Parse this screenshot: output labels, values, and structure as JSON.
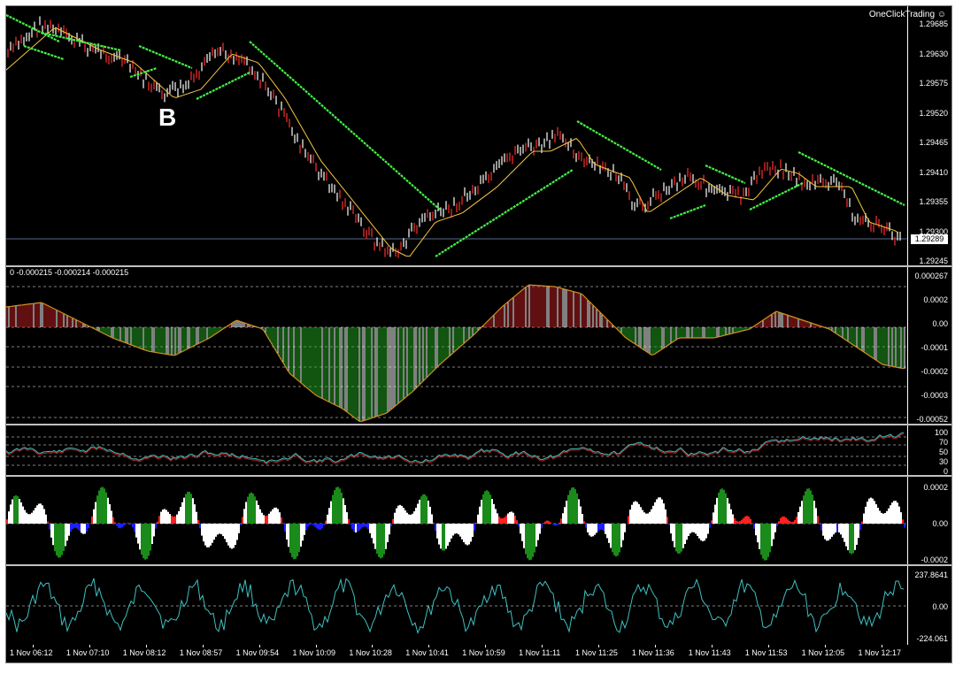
{
  "brand": "OneClickTrading ☺",
  "annotation": "B",
  "current_price": "1.29289",
  "main_axis": [
    "1.29685",
    "1.29630",
    "1.29575",
    "1.29520",
    "1.29465",
    "1.29410",
    "1.29355",
    "1.29300",
    "1.29245"
  ],
  "osma_title": "0 -0.000215 -0.000214 -0.000215",
  "osma_axis": [
    "0.000267",
    "0.0002",
    "0.00",
    "-0.0001",
    "-0.0002",
    "-0.0003",
    "-0.00052"
  ],
  "rsi_axis": [
    "100",
    "70",
    "50",
    "30",
    "0"
  ],
  "hist_axis": [
    "0.0002",
    "0.00",
    "-0.0002"
  ],
  "cci_axis": [
    "237.8641",
    "0.00",
    "-224.061"
  ],
  "time_labels": [
    "1 Nov 06:12",
    "1 Nov 07:10",
    "1 Nov 08:12",
    "1 Nov 08:57",
    "1 Nov 09:54",
    "1 Nov 10:09",
    "1 Nov 10:28",
    "1 Nov 10:41",
    "1 Nov 10:59",
    "1 Nov 11:11",
    "1 Nov 11:25",
    "1 Nov 11:36",
    "1 Nov 11:43",
    "1 Nov 11:53",
    "1 Nov 12:05",
    "1 Nov 12:17"
  ],
  "colors": {
    "background": "#000000",
    "bull": "#ff3030",
    "bear": "#ffffff",
    "ma": "#f5c542",
    "channel": "#44ee44",
    "osma_pos": "#c02020",
    "osma_neg": "#22aa22",
    "cci_line": "#3fc0c0"
  },
  "icons": {
    "brand": "smiley-icon"
  }
}
